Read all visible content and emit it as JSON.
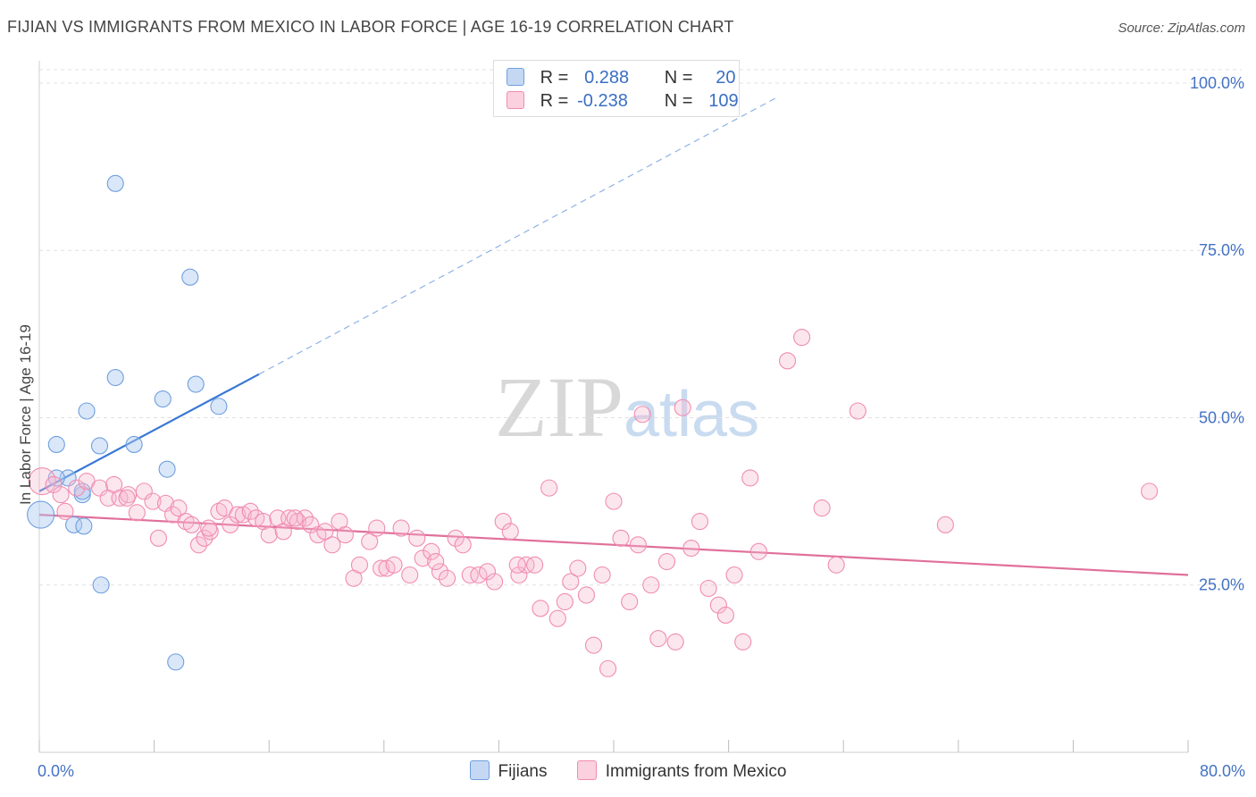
{
  "header": {
    "title": "FIJIAN VS IMMIGRANTS FROM MEXICO IN LABOR FORCE | AGE 16-19 CORRELATION CHART",
    "source": "Source: ZipAtlas.com"
  },
  "watermark": {
    "zip": "ZIP",
    "atlas": "atlas"
  },
  "legend": {
    "rows": [
      {
        "r_label": "R =",
        "r_value": "0.288",
        "n_label": "N =",
        "n_value": "20",
        "color": "#6f9fe0"
      },
      {
        "r_label": "R =",
        "r_value": "-0.238",
        "n_label": "N =",
        "n_value": "109",
        "color": "#f08cb0"
      }
    ]
  },
  "bottom_legend": {
    "fijians": "Fijians",
    "mexico": "Immigrants from Mexico"
  },
  "chart_data": {
    "type": "scatter",
    "title": "FIJIAN VS IMMIGRANTS FROM MEXICO IN LABOR FORCE | AGE 16-19 CORRELATION CHART",
    "xlabel": "",
    "ylabel": "In Labor Force | Age 16-19",
    "xlim": [
      0,
      80
    ],
    "ylim": [
      0,
      102
    ],
    "x_tick_labels": [
      "0.0%",
      "80.0%"
    ],
    "y_ticks": [
      25,
      50,
      75,
      100
    ],
    "y_tick_labels": [
      "25.0%",
      "50.0%",
      "75.0%",
      "100.0%"
    ],
    "grid": true,
    "legend_position": "top-center",
    "series": [
      {
        "name": "Fijians",
        "color": "#6f9fe0",
        "points": [
          [
            0.1,
            35.5
          ],
          [
            1.2,
            46.0
          ],
          [
            2.0,
            41.0
          ],
          [
            3.3,
            51.0
          ],
          [
            3.0,
            38.5
          ],
          [
            2.4,
            34.0
          ],
          [
            3.0,
            39.0
          ],
          [
            4.2,
            45.8
          ],
          [
            5.3,
            85.0
          ],
          [
            5.3,
            56.0
          ],
          [
            6.6,
            46.0
          ],
          [
            8.6,
            52.8
          ],
          [
            8.9,
            42.3
          ],
          [
            10.5,
            71.0
          ],
          [
            10.9,
            55.0
          ],
          [
            12.5,
            51.7
          ],
          [
            3.1,
            33.8
          ],
          [
            4.3,
            25.0
          ],
          [
            9.5,
            13.5
          ],
          [
            1.2,
            41.0
          ]
        ],
        "trend": {
          "x0": 0,
          "y0": 39.0,
          "x1": 15.3,
          "y1": 56.5,
          "x_end": 51.5,
          "y_end": 98
        }
      },
      {
        "name": "Immigrants from Mexico",
        "color": "#f08cb0",
        "points": [
          [
            0.2,
            40.5
          ],
          [
            1.0,
            40.0
          ],
          [
            1.8,
            36.0
          ],
          [
            2.6,
            39.5
          ],
          [
            3.3,
            40.5
          ],
          [
            4.2,
            39.5
          ],
          [
            4.8,
            38.0
          ],
          [
            5.2,
            40.0
          ],
          [
            5.6,
            38.0
          ],
          [
            6.2,
            38.5
          ],
          [
            6.8,
            35.8
          ],
          [
            7.3,
            39.0
          ],
          [
            7.9,
            37.5
          ],
          [
            8.3,
            32.0
          ],
          [
            8.8,
            37.2
          ],
          [
            9.3,
            35.5
          ],
          [
            9.7,
            36.5
          ],
          [
            10.2,
            34.5
          ],
          [
            10.6,
            34.0
          ],
          [
            11.1,
            31.0
          ],
          [
            11.5,
            32.0
          ],
          [
            11.9,
            33.0
          ],
          [
            12.5,
            36.0
          ],
          [
            12.9,
            36.5
          ],
          [
            13.3,
            34.0
          ],
          [
            13.8,
            35.5
          ],
          [
            14.2,
            35.5
          ],
          [
            14.7,
            36.0
          ],
          [
            15.1,
            35.0
          ],
          [
            15.6,
            34.5
          ],
          [
            16.0,
            32.5
          ],
          [
            16.6,
            35.0
          ],
          [
            17.0,
            33.0
          ],
          [
            17.4,
            35.0
          ],
          [
            18.0,
            34.5
          ],
          [
            18.5,
            35.0
          ],
          [
            18.9,
            34.0
          ],
          [
            19.4,
            32.5
          ],
          [
            19.9,
            33.0
          ],
          [
            20.4,
            31.0
          ],
          [
            20.9,
            34.5
          ],
          [
            21.3,
            32.5
          ],
          [
            21.9,
            26.0
          ],
          [
            22.3,
            28.0
          ],
          [
            23.0,
            31.5
          ],
          [
            23.5,
            33.5
          ],
          [
            23.8,
            27.5
          ],
          [
            24.2,
            27.5
          ],
          [
            24.7,
            28.0
          ],
          [
            25.2,
            33.5
          ],
          [
            25.8,
            26.5
          ],
          [
            26.3,
            32.0
          ],
          [
            26.7,
            29.0
          ],
          [
            27.3,
            30.0
          ],
          [
            27.9,
            27.0
          ],
          [
            28.4,
            26.0
          ],
          [
            29.0,
            32.0
          ],
          [
            29.5,
            31.0
          ],
          [
            30.0,
            26.5
          ],
          [
            30.6,
            26.5
          ],
          [
            31.2,
            27.0
          ],
          [
            31.7,
            25.5
          ],
          [
            32.3,
            34.5
          ],
          [
            32.8,
            33.0
          ],
          [
            33.4,
            26.5
          ],
          [
            33.9,
            28.0
          ],
          [
            34.5,
            28.0
          ],
          [
            34.9,
            21.5
          ],
          [
            35.5,
            39.5
          ],
          [
            36.1,
            20.0
          ],
          [
            36.6,
            22.5
          ],
          [
            37.0,
            25.5
          ],
          [
            37.5,
            27.5
          ],
          [
            38.1,
            23.5
          ],
          [
            38.6,
            16.0
          ],
          [
            39.2,
            26.5
          ],
          [
            39.6,
            12.5
          ],
          [
            40.0,
            37.5
          ],
          [
            40.5,
            32.0
          ],
          [
            41.1,
            22.5
          ],
          [
            41.7,
            31.0
          ],
          [
            42.0,
            50.5
          ],
          [
            42.6,
            25.0
          ],
          [
            43.1,
            17.0
          ],
          [
            43.7,
            28.5
          ],
          [
            44.3,
            16.5
          ],
          [
            44.8,
            51.5
          ],
          [
            45.4,
            30.5
          ],
          [
            46.0,
            34.5
          ],
          [
            46.6,
            24.5
          ],
          [
            47.3,
            22.0
          ],
          [
            47.8,
            20.5
          ],
          [
            48.4,
            26.5
          ],
          [
            49.0,
            16.5
          ],
          [
            49.5,
            41.0
          ],
          [
            50.1,
            30.0
          ],
          [
            52.1,
            58.5
          ],
          [
            53.1,
            62.0
          ],
          [
            54.5,
            36.5
          ],
          [
            55.5,
            28.0
          ],
          [
            57.0,
            51.0
          ],
          [
            63.1,
            34.0
          ],
          [
            77.3,
            39.0
          ],
          [
            1.5,
            38.5
          ],
          [
            6.1,
            38.0
          ],
          [
            11.8,
            33.5
          ],
          [
            17.8,
            35.0
          ],
          [
            27.6,
            28.5
          ],
          [
            33.3,
            28.0
          ]
        ],
        "trend": {
          "x0": 0,
          "y0": 35.5,
          "x1": 80,
          "y1": 26.5
        }
      }
    ]
  }
}
